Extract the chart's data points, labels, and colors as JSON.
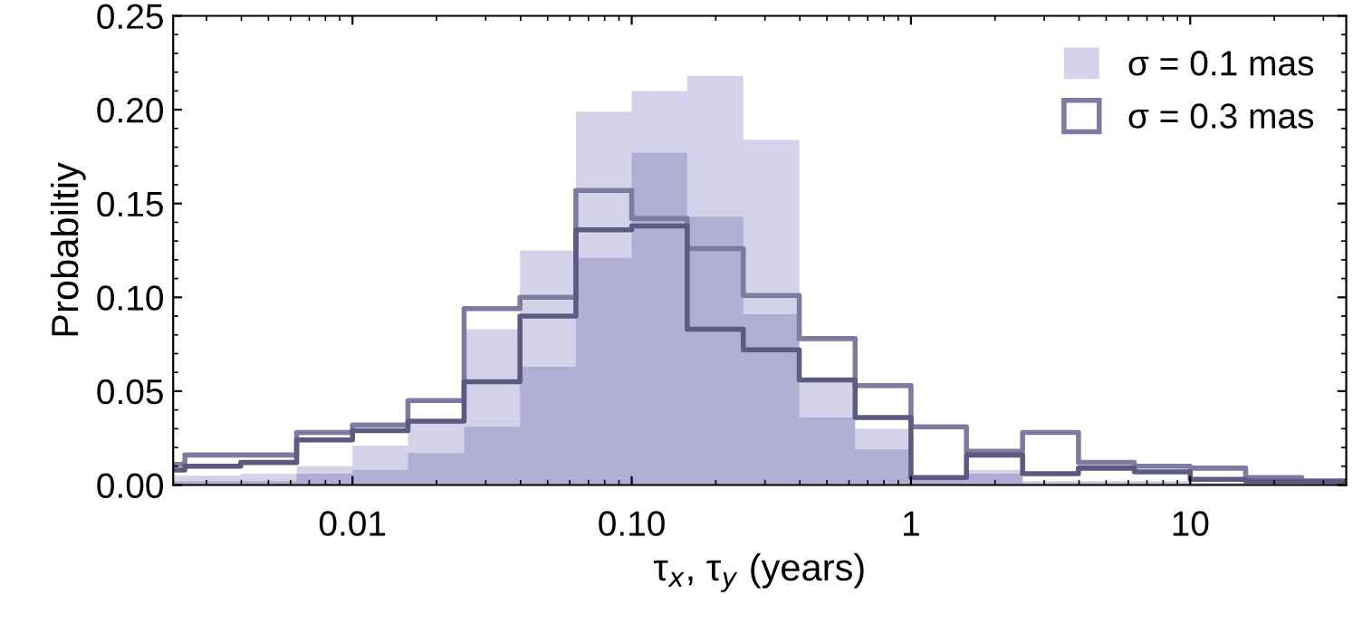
{
  "chart_data": {
    "type": "histogram",
    "xlabel": "τ$_{x}$, τ$_{y}$ (years)",
    "ylabel": "Probabiltiy",
    "log": "x",
    "bins": [
      0.00158,
      0.00251,
      0.00398,
      0.00631,
      0.01,
      0.0158,
      0.0251,
      0.0398,
      0.0631,
      0.1,
      0.158,
      0.251,
      0.398,
      0.631,
      1,
      1.58,
      2.51,
      3.98,
      6.31,
      10,
      15.8,
      25.1,
      39.8
    ],
    "series": [
      {
        "name": "σ = 0.1 mas",
        "type": "histogram",
        "color": "#d3d2e8",
        "values": [
          0.005,
          0.005,
          0.006,
          0.01,
          0.021,
          0.034,
          0.083,
          0.125,
          0.199,
          0.21,
          0.218,
          0.184,
          0.056,
          0.03,
          0.004,
          0.008,
          0.002,
          0.002,
          0.002,
          0.001,
          0.001,
          0.001
        ]
      },
      {
        "type": "histogram",
        "color": "#b0aed4",
        "values": [
          0.002,
          0.002,
          0.002,
          0.006,
          0.008,
          0.017,
          0.031,
          0.063,
          0.121,
          0.177,
          0.143,
          0.091,
          0.036,
          0.019,
          0.005,
          0.006,
          0.001,
          0.001,
          0.001,
          0.001,
          0.0,
          0.0
        ]
      },
      {
        "name": "σ = 0.3 mas",
        "type": "step",
        "color": "#7d7ba0",
        "x": [
          0.00228,
          0.00251,
          0.00398,
          0.00631,
          0.01,
          0.0158,
          0.0251,
          0.0398,
          0.0631,
          0.1,
          0.158,
          0.251,
          0.398,
          0.631,
          1,
          1.58,
          2.51,
          3.98,
          6.31,
          10,
          15.8,
          25.1
        ],
        "values": [
          0.011,
          0.016,
          0.016,
          0.028,
          0.032,
          0.045,
          0.094,
          0.1,
          0.157,
          0.142,
          0.126,
          0.101,
          0.078,
          0.053,
          0.031,
          0.018,
          0.028,
          0.012,
          0.01,
          0.009,
          0.004,
          0.002
        ]
      },
      {
        "type": "step",
        "color": "#5c5a80",
        "x": [
          0.00228,
          0.00251,
          0.00398,
          0.00631,
          0.01,
          0.0158,
          0.0251,
          0.0398,
          0.0631,
          0.1,
          0.158,
          0.251,
          0.398,
          0.631,
          1,
          1.58,
          2.51,
          3.98,
          6.31,
          10,
          15.8,
          25.1
        ],
        "values": [
          0.008,
          0.01,
          0.012,
          0.024,
          0.029,
          0.034,
          0.055,
          0.09,
          0.136,
          0.138,
          0.083,
          0.072,
          0.056,
          0.036,
          0.004,
          0.016,
          0.006,
          0.009,
          0.007,
          0.003,
          0.002,
          0.002
        ]
      }
    ],
    "xlim": [
      0.00228,
      36.2
    ],
    "xticks": [
      {
        "value": 0.01,
        "label": "0.01"
      },
      {
        "value": 0.1,
        "label": "0.10"
      },
      1,
      10
    ],
    "ylim": [
      0,
      0.25
    ],
    "yticks": [
      {
        "value": 0,
        "label": "0.00"
      },
      {
        "value": 0.05,
        "label": "0.05"
      },
      {
        "value": 0.1,
        "label": "0.10"
      },
      {
        "value": 0.15,
        "label": "0.15"
      },
      {
        "value": 0.2,
        "label": "0.20"
      },
      {
        "value": 0.25,
        "label": "0.25"
      }
    ],
    "grid": false,
    "legend": "top right"
  }
}
